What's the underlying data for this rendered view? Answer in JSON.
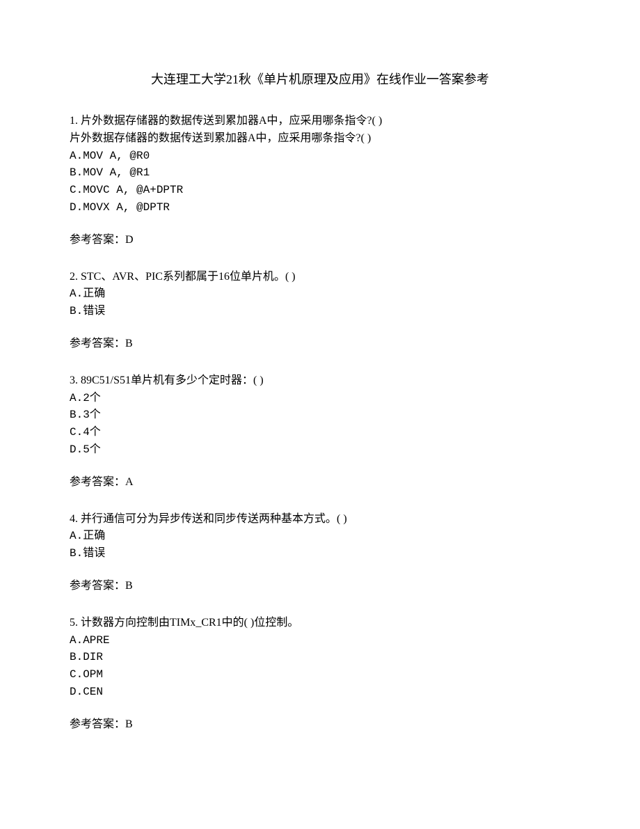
{
  "title": "大连理工大学21秋《单片机原理及应用》在线作业一答案参考",
  "questions": [
    {
      "number": "1.",
      "text": "片外数据存储器的数据传送到累加器A中，应采用哪条指令?(  )",
      "repeat": "片外数据存储器的数据传送到累加器A中，应采用哪条指令?(  )",
      "options": [
        "A.MOV A, @R0",
        "B.MOV A, @R1",
        "C.MOVC A, @A+DPTR",
        "D.MOVX A, @DPTR"
      ],
      "answer": "参考答案：D"
    },
    {
      "number": "2.",
      "text": "STC、AVR、PIC系列都属于16位单片机。(  )",
      "options": [
        "A.正确",
        "B.错误"
      ],
      "answer": "参考答案：B"
    },
    {
      "number": "3.",
      "text": "89C51/S51单片机有多少个定时器：(  )",
      "options": [
        "A.2个",
        "B.3个",
        "C.4个",
        "D.5个"
      ],
      "answer": "参考答案：A"
    },
    {
      "number": "4.",
      "text": "并行通信可分为异步传送和同步传送两种基本方式。(  )",
      "options": [
        "A.正确",
        "B.错误"
      ],
      "answer": "参考答案：B"
    },
    {
      "number": "5.",
      "text": "计数器方向控制由TIMx_CR1中的(  )位控制。",
      "options": [
        "A.APRE",
        "B.DIR",
        "C.OPM",
        "D.CEN"
      ],
      "answer": "参考答案：B"
    }
  ]
}
